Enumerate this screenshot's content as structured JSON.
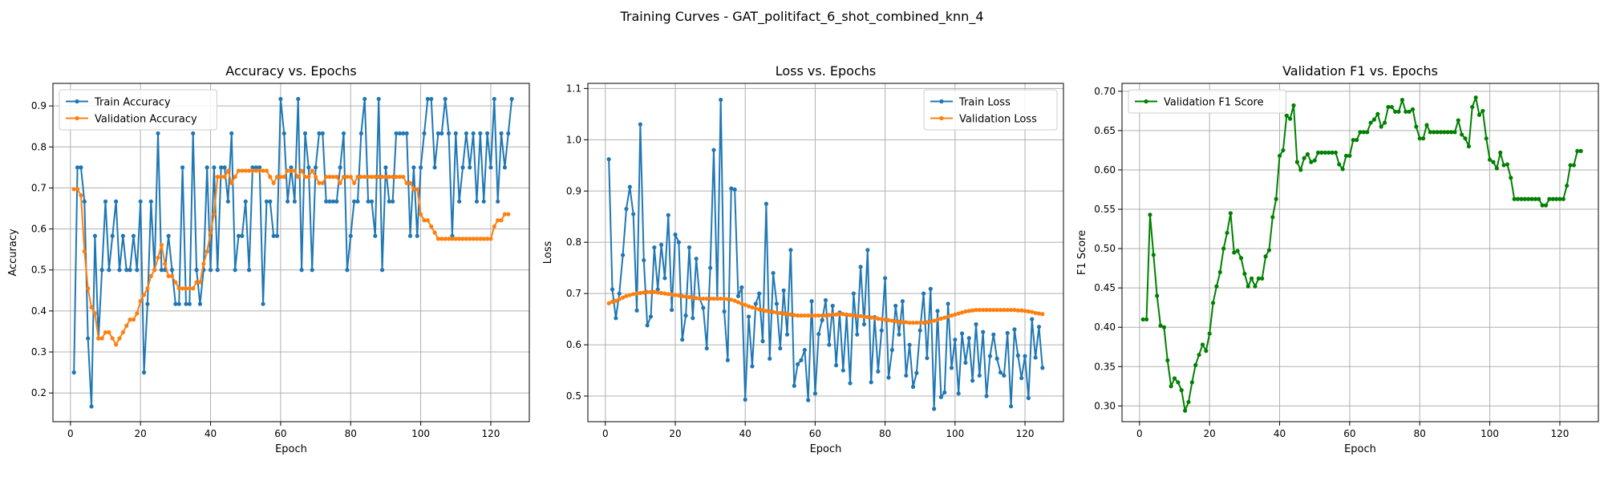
{
  "figure": {
    "suptitle": "Training Curves - GAT_politifact_6_shot_combined_knn_4"
  },
  "colors": {
    "blue": "#1f77b4",
    "orange": "#ff7f0e",
    "green": "#008000"
  },
  "chart_data": [
    {
      "type": "line",
      "title": "Accuracy vs. Epochs",
      "xlabel": "Epoch",
      "ylabel": "Accuracy",
      "xlim": [
        -5,
        131
      ],
      "ylim": [
        0.13,
        0.955
      ],
      "xticks": [
        0,
        20,
        40,
        60,
        80,
        100,
        120
      ],
      "yticks": [
        0.2,
        0.3,
        0.4,
        0.5,
        0.6,
        0.7,
        0.8,
        0.9
      ],
      "ytick_decimals": 1,
      "grid": true,
      "legend_position": "upper-left",
      "series": [
        {
          "name": "Train Accuracy",
          "color": "#1f77b4",
          "values": [
            0.25,
            0.75,
            0.75,
            0.667,
            0.333,
            0.167,
            0.583,
            0.333,
            0.5,
            0.667,
            0.5,
            0.583,
            0.667,
            0.5,
            0.583,
            0.5,
            0.5,
            0.583,
            0.5,
            0.667,
            0.25,
            0.417,
            0.667,
            0.5,
            0.833,
            0.5,
            0.5,
            0.583,
            0.5,
            0.417,
            0.417,
            0.75,
            0.417,
            0.417,
            0.833,
            0.5,
            0.417,
            0.5,
            0.75,
            0.5,
            0.75,
            0.5,
            0.75,
            0.75,
            0.667,
            0.833,
            0.5,
            0.583,
            0.583,
            0.667,
            0.5,
            0.75,
            0.75,
            0.75,
            0.417,
            0.667,
            0.667,
            0.583,
            0.583,
            0.917,
            0.833,
            0.667,
            0.75,
            0.667,
            0.917,
            0.5,
            0.833,
            0.75,
            0.5,
            0.75,
            0.833,
            0.833,
            0.667,
            0.667,
            0.667,
            0.667,
            0.75,
            0.833,
            0.5,
            0.583,
            0.667,
            0.667,
            0.833,
            0.917,
            0.667,
            0.667,
            0.583,
            0.917,
            0.5,
            0.75,
            0.667,
            0.667,
            0.833,
            0.833,
            0.833,
            0.833,
            0.583,
            0.75,
            0.583,
            0.75,
            0.833,
            0.917,
            0.917,
            0.75,
            0.833,
            0.833,
            0.917,
            0.833,
            0.583,
            0.833,
            0.667,
            0.75,
            0.833,
            0.75,
            0.833,
            0.667,
            0.833,
            0.667,
            0.833,
            0.75,
            0.917,
            0.667,
            0.833,
            0.75,
            0.833,
            0.917
          ]
        },
        {
          "name": "Validation Accuracy",
          "color": "#ff7f0e",
          "values": [
            0.697,
            0.697,
            0.682,
            0.545,
            0.455,
            0.409,
            0.394,
            0.333,
            0.333,
            0.348,
            0.348,
            0.333,
            0.318,
            0.333,
            0.348,
            0.364,
            0.379,
            0.379,
            0.394,
            0.424,
            0.439,
            0.455,
            0.485,
            0.5,
            0.53,
            0.561,
            0.515,
            0.485,
            0.485,
            0.47,
            0.455,
            0.455,
            0.455,
            0.455,
            0.455,
            0.47,
            0.47,
            0.515,
            0.545,
            0.591,
            0.636,
            0.727,
            0.727,
            0.727,
            0.742,
            0.712,
            0.727,
            0.742,
            0.742,
            0.742,
            0.742,
            0.742,
            0.742,
            0.742,
            0.742,
            0.742,
            0.727,
            0.712,
            0.727,
            0.727,
            0.727,
            0.742,
            0.742,
            0.742,
            0.727,
            0.742,
            0.727,
            0.727,
            0.742,
            0.727,
            0.712,
            0.712,
            0.727,
            0.727,
            0.727,
            0.727,
            0.712,
            0.727,
            0.727,
            0.727,
            0.712,
            0.727,
            0.727,
            0.727,
            0.727,
            0.727,
            0.727,
            0.727,
            0.727,
            0.727,
            0.727,
            0.727,
            0.727,
            0.727,
            0.727,
            0.712,
            0.712,
            0.697,
            0.697,
            0.636,
            0.621,
            0.621,
            0.606,
            0.591,
            0.576,
            0.576,
            0.576,
            0.576,
            0.576,
            0.576,
            0.576,
            0.576,
            0.576,
            0.576,
            0.576,
            0.576,
            0.576,
            0.576,
            0.576,
            0.576,
            0.606,
            0.621,
            0.621,
            0.636,
            0.636
          ]
        }
      ]
    },
    {
      "type": "line",
      "title": "Loss vs. Epochs",
      "xlabel": "Epoch",
      "ylabel": "Loss",
      "xlim": [
        -5,
        131
      ],
      "ylim": [
        0.45,
        1.11
      ],
      "xticks": [
        0,
        20,
        40,
        60,
        80,
        100,
        120
      ],
      "yticks": [
        0.5,
        0.6,
        0.7,
        0.8,
        0.9,
        1.0,
        1.1
      ],
      "ytick_decimals": 1,
      "grid": true,
      "legend_position": "upper-right",
      "series": [
        {
          "name": "Train Loss",
          "color": "#1f77b4",
          "values": [
            0.962,
            0.708,
            0.652,
            0.7,
            0.775,
            0.865,
            0.908,
            0.855,
            0.667,
            1.03,
            0.765,
            0.638,
            0.655,
            0.79,
            0.708,
            0.795,
            0.73,
            0.853,
            0.668,
            0.815,
            0.8,
            0.61,
            0.657,
            0.79,
            0.652,
            0.768,
            0.69,
            0.672,
            0.593,
            0.75,
            0.98,
            0.69,
            1.078,
            0.665,
            0.57,
            0.905,
            0.903,
            0.695,
            0.712,
            0.493,
            0.655,
            0.558,
            0.68,
            0.7,
            0.607,
            0.875,
            0.573,
            0.74,
            0.68,
            0.593,
            0.706,
            0.62,
            0.785,
            0.52,
            0.562,
            0.57,
            0.59,
            0.492,
            0.685,
            0.505,
            0.621,
            0.648,
            0.687,
            0.6,
            0.676,
            0.56,
            0.663,
            0.55,
            0.658,
            0.525,
            0.7,
            0.62,
            0.752,
            0.64,
            0.785,
            0.527,
            0.654,
            0.548,
            0.628,
            0.73,
            0.536,
            0.59,
            0.676,
            0.62,
            0.685,
            0.54,
            0.6,
            0.518,
            0.545,
            0.628,
            0.7,
            0.574,
            0.709,
            0.475,
            0.666,
            0.498,
            0.507,
            0.68,
            0.555,
            0.61,
            0.505,
            0.622,
            0.565,
            0.613,
            0.53,
            0.64,
            0.54,
            0.625,
            0.5,
            0.578,
            0.62,
            0.573,
            0.546,
            0.54,
            0.623,
            0.48,
            0.63,
            0.579,
            0.535,
            0.578,
            0.496,
            0.65,
            0.575,
            0.635,
            0.555
          ]
        },
        {
          "name": "Validation Loss",
          "color": "#ff7f0e",
          "values": [
            0.681,
            0.684,
            0.686,
            0.689,
            0.692,
            0.695,
            0.697,
            0.699,
            0.7,
            0.701,
            0.702,
            0.703,
            0.703,
            0.703,
            0.702,
            0.701,
            0.7,
            0.699,
            0.698,
            0.697,
            0.696,
            0.695,
            0.694,
            0.693,
            0.692,
            0.691,
            0.69,
            0.69,
            0.69,
            0.69,
            0.69,
            0.69,
            0.69,
            0.69,
            0.689,
            0.688,
            0.686,
            0.683,
            0.68,
            0.678,
            0.675,
            0.673,
            0.671,
            0.669,
            0.668,
            0.666,
            0.665,
            0.664,
            0.663,
            0.662,
            0.661,
            0.66,
            0.659,
            0.658,
            0.657,
            0.657,
            0.657,
            0.657,
            0.657,
            0.657,
            0.657,
            0.657,
            0.657,
            0.658,
            0.659,
            0.659,
            0.66,
            0.66,
            0.659,
            0.658,
            0.657,
            0.656,
            0.656,
            0.655,
            0.654,
            0.653,
            0.652,
            0.651,
            0.65,
            0.649,
            0.648,
            0.647,
            0.646,
            0.645,
            0.644,
            0.644,
            0.643,
            0.643,
            0.643,
            0.643,
            0.643,
            0.644,
            0.645,
            0.647,
            0.649,
            0.651,
            0.653,
            0.655,
            0.657,
            0.659,
            0.661,
            0.663,
            0.665,
            0.666,
            0.667,
            0.668,
            0.668,
            0.668,
            0.668,
            0.668,
            0.668,
            0.668,
            0.668,
            0.668,
            0.668,
            0.668,
            0.668,
            0.667,
            0.667,
            0.666,
            0.665,
            0.664,
            0.662,
            0.661,
            0.66
          ]
        }
      ]
    },
    {
      "type": "line",
      "title": "Validation F1 vs. Epochs",
      "xlabel": "Epoch",
      "ylabel": "F1 Score",
      "xlim": [
        -5,
        131
      ],
      "ylim": [
        0.28,
        0.71
      ],
      "xticks": [
        0,
        20,
        40,
        60,
        80,
        100,
        120
      ],
      "yticks": [
        0.3,
        0.35,
        0.4,
        0.45,
        0.5,
        0.55,
        0.6,
        0.65,
        0.7
      ],
      "ytick_decimals": 2,
      "grid": true,
      "legend_position": "upper-left",
      "series": [
        {
          "name": "Validation F1 Score",
          "color": "#008000",
          "values": [
            0.41,
            0.41,
            0.543,
            0.492,
            0.44,
            0.402,
            0.4,
            0.358,
            0.325,
            0.335,
            0.33,
            0.32,
            0.294,
            0.305,
            0.33,
            0.352,
            0.365,
            0.378,
            0.37,
            0.392,
            0.431,
            0.452,
            0.47,
            0.5,
            0.52,
            0.545,
            0.495,
            0.497,
            0.488,
            0.468,
            0.452,
            0.462,
            0.452,
            0.462,
            0.462,
            0.49,
            0.498,
            0.54,
            0.563,
            0.618,
            0.625,
            0.669,
            0.665,
            0.682,
            0.61,
            0.6,
            0.615,
            0.62,
            0.61,
            0.612,
            0.622,
            0.622,
            0.622,
            0.622,
            0.622,
            0.622,
            0.607,
            0.601,
            0.618,
            0.618,
            0.638,
            0.638,
            0.648,
            0.648,
            0.648,
            0.66,
            0.664,
            0.671,
            0.655,
            0.66,
            0.68,
            0.68,
            0.674,
            0.674,
            0.689,
            0.674,
            0.674,
            0.677,
            0.655,
            0.64,
            0.64,
            0.657,
            0.648,
            0.648,
            0.648,
            0.648,
            0.648,
            0.648,
            0.648,
            0.648,
            0.663,
            0.645,
            0.64,
            0.63,
            0.68,
            0.692,
            0.67,
            0.675,
            0.64,
            0.613,
            0.61,
            0.602,
            0.622,
            0.606,
            0.607,
            0.59,
            0.563,
            0.563,
            0.563,
            0.563,
            0.563,
            0.563,
            0.563,
            0.563,
            0.555,
            0.555,
            0.563,
            0.563,
            0.563,
            0.563,
            0.563,
            0.58,
            0.606,
            0.606,
            0.624,
            0.624
          ]
        }
      ]
    }
  ]
}
